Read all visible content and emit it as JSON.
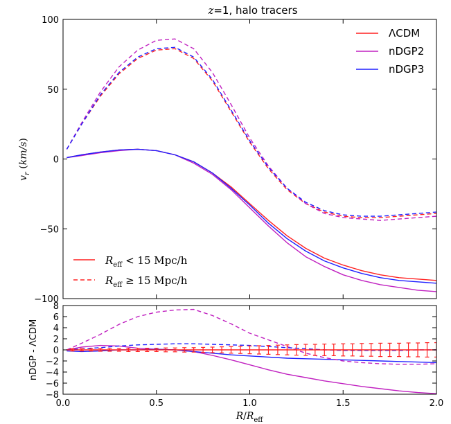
{
  "chart_data": [
    {
      "type": "line",
      "title": "z=1, halo tracers",
      "title_math": "z",
      "title_rest": "=1, halo tracers",
      "xlabel": "R/R_eff",
      "ylabel": "v_r (km/s)",
      "xlim": [
        0.0,
        2.0
      ],
      "ylim": [
        -100,
        100
      ],
      "xticks": [
        0.0,
        0.5,
        1.0,
        1.5,
        2.0
      ],
      "xtick_labels": [
        "0.0",
        "0.5",
        "1.0",
        "1.5",
        "2.0"
      ],
      "yticks": [
        -100,
        -50,
        0,
        50,
        100
      ],
      "ytick_labels": [
        "−100",
        "−50",
        "0",
        "50",
        "100"
      ],
      "grid": false,
      "legend": {
        "placement": "top-right",
        "entries": [
          {
            "label": "ΛCDM",
            "color": "#ff2020"
          },
          {
            "label": "nDGP2",
            "color": "#c020c0"
          },
          {
            "label": "nDGP3",
            "color": "#1f1fff"
          }
        ]
      },
      "style_legend": {
        "placement": "lower-left",
        "entries": [
          {
            "label": "R_eff < 15 Mpc/h",
            "linestyle": "solid",
            "color": "#ff2020"
          },
          {
            "label": "R_eff ≥ 15 Mpc/h",
            "linestyle": "dashed",
            "color": "#ff2020"
          }
        ]
      },
      "x": [
        0.02,
        0.1,
        0.2,
        0.3,
        0.4,
        0.5,
        0.6,
        0.7,
        0.8,
        0.9,
        1.0,
        1.1,
        1.2,
        1.3,
        1.4,
        1.5,
        1.6,
        1.7,
        1.8,
        1.9,
        2.0
      ],
      "series": [
        {
          "name": "ΛCDM",
          "group": "R_eff < 15 Mpc/h",
          "linestyle": "solid",
          "color": "#ff2020",
          "values": [
            1,
            3,
            5,
            6.5,
            7,
            6,
            3,
            -2,
            -10,
            -20,
            -32,
            -44,
            -55,
            -64,
            -71,
            -76,
            -80,
            -83,
            -85,
            -86,
            -87
          ]
        },
        {
          "name": "nDGP2",
          "group": "R_eff < 15 Mpc/h",
          "linestyle": "solid",
          "color": "#c020c0",
          "values": [
            1,
            2.5,
            4.5,
            6,
            7,
            6,
            3,
            -3,
            -11,
            -22,
            -35,
            -48,
            -60,
            -70,
            -77,
            -83,
            -87,
            -90,
            -92,
            -94,
            -95
          ]
        },
        {
          "name": "nDGP3",
          "group": "R_eff < 15 Mpc/h",
          "linestyle": "solid",
          "color": "#1f1fff",
          "values": [
            1,
            3,
            5,
            6.5,
            7,
            6,
            3,
            -2,
            -10,
            -21,
            -33,
            -46,
            -57,
            -66,
            -73,
            -78,
            -82,
            -85,
            -87,
            -88,
            -89
          ]
        },
        {
          "name": "ΛCDM",
          "group": "R_eff ≥ 15 Mpc/h",
          "linestyle": "dashed",
          "color": "#ff2020",
          "values": [
            7,
            25,
            45,
            61,
            72,
            78,
            79,
            72,
            56,
            34,
            12,
            -7,
            -22,
            -32,
            -38,
            -41,
            -42,
            -42,
            -41,
            -40,
            -39
          ]
        },
        {
          "name": "nDGP2",
          "group": "R_eff ≥ 15 Mpc/h",
          "linestyle": "dashed",
          "color": "#c020c0",
          "values": [
            7,
            26,
            48,
            66,
            78,
            85,
            86,
            79,
            62,
            39,
            15,
            -5,
            -21,
            -32,
            -39,
            -42,
            -43,
            -44,
            -43,
            -42,
            -41
          ]
        },
        {
          "name": "nDGP3",
          "group": "R_eff ≥ 15 Mpc/h",
          "linestyle": "dashed",
          "color": "#1f1fff",
          "values": [
            7,
            25,
            46,
            62,
            73,
            79,
            80,
            73,
            57,
            35,
            13,
            -6,
            -21,
            -31,
            -37,
            -40,
            -41,
            -41,
            -40,
            -39,
            -38
          ]
        }
      ]
    },
    {
      "type": "line",
      "xlabel": "R/R_eff",
      "ylabel": "nDGP - ΛCDM",
      "xlim": [
        0.0,
        2.0
      ],
      "ylim": [
        -8,
        8
      ],
      "xticks": [
        0.0,
        0.5,
        1.0,
        1.5,
        2.0
      ],
      "xtick_labels": [
        "0.0",
        "0.5",
        "1.0",
        "1.5",
        "2.0"
      ],
      "yticks": [
        -8,
        -6,
        -4,
        -2,
        0,
        2,
        4,
        6,
        8
      ],
      "ytick_labels": [
        "−8",
        "−6",
        "−4",
        "−2",
        "0",
        "2",
        "4",
        "6",
        "8"
      ],
      "grid": false,
      "x": [
        0.02,
        0.1,
        0.2,
        0.3,
        0.4,
        0.5,
        0.6,
        0.7,
        0.8,
        0.9,
        1.0,
        1.1,
        1.2,
        1.3,
        1.4,
        1.5,
        1.6,
        1.7,
        1.8,
        1.9,
        2.0
      ],
      "series": [
        {
          "name": "nDGP2",
          "linestyle": "solid",
          "color": "#c020c0",
          "values": [
            0,
            0.5,
            0.8,
            0.7,
            0.3,
            0.1,
            0.0,
            -0.3,
            -1.0,
            -1.8,
            -2.7,
            -3.6,
            -4.4,
            -5.0,
            -5.6,
            -6.1,
            -6.6,
            -7.0,
            -7.4,
            -7.7,
            -7.9
          ]
        },
        {
          "name": "nDGP3",
          "linestyle": "solid",
          "color": "#1f1fff",
          "values": [
            -0.2,
            -0.3,
            -0.2,
            0.0,
            0.0,
            0.1,
            0.0,
            -0.3,
            -0.6,
            -0.9,
            -1.1,
            -1.3,
            -1.5,
            -1.6,
            -1.7,
            -1.8,
            -1.9,
            -2.0,
            -2.1,
            -2.2,
            -2.3
          ]
        },
        {
          "name": "nDGP2",
          "linestyle": "dashed",
          "color": "#c020c0",
          "values": [
            0,
            1.2,
            2.8,
            4.6,
            6.0,
            6.8,
            7.2,
            7.3,
            6.2,
            4.7,
            3.0,
            1.8,
            0.6,
            -0.6,
            -1.4,
            -2.0,
            -2.3,
            -2.5,
            -2.6,
            -2.6,
            -2.5
          ]
        },
        {
          "name": "nDGP3",
          "linestyle": "dashed",
          "color": "#1f1fff",
          "values": [
            0,
            0.2,
            0.4,
            0.7,
            0.9,
            1.0,
            1.1,
            1.1,
            1.0,
            0.9,
            0.8,
            0.6,
            0.4,
            0.2,
            0.0,
            -0.1,
            -0.1,
            -0.1,
            -0.1,
            0.0,
            0.0
          ]
        },
        {
          "name": "ΛCDM",
          "linestyle": "solid",
          "color": "#ff2020",
          "values": [
            0,
            0,
            0,
            0,
            0,
            0,
            0,
            0,
            0,
            0,
            0,
            0,
            0,
            0,
            0,
            0,
            0,
            0,
            0,
            0,
            0
          ]
        }
      ],
      "errorbars": {
        "color": "#ff2020",
        "x": [
          0.05,
          0.1,
          0.15,
          0.2,
          0.25,
          0.3,
          0.35,
          0.4,
          0.45,
          0.5,
          0.55,
          0.6,
          0.65,
          0.7,
          0.75,
          0.8,
          0.85,
          0.9,
          0.95,
          1.0,
          1.05,
          1.1,
          1.15,
          1.2,
          1.25,
          1.3,
          1.35,
          1.4,
          1.45,
          1.5,
          1.55,
          1.6,
          1.65,
          1.7,
          1.75,
          1.8,
          1.85,
          1.9,
          1.95,
          2.0
        ],
        "y": [
          0,
          0,
          0,
          0,
          0,
          0,
          0,
          0,
          0,
          0,
          0,
          0,
          0,
          0,
          0,
          0,
          0,
          0,
          0,
          0,
          0,
          0,
          0,
          0,
          0,
          0,
          0,
          0,
          0,
          0,
          0,
          0,
          0,
          0,
          0,
          0,
          0,
          0,
          0,
          0
        ],
        "err": [
          0.2,
          0.2,
          0.2,
          0.25,
          0.25,
          0.25,
          0.3,
          0.3,
          0.3,
          0.3,
          0.35,
          0.35,
          0.4,
          0.4,
          0.45,
          0.5,
          0.55,
          0.6,
          0.65,
          0.7,
          0.75,
          0.8,
          0.85,
          0.9,
          0.95,
          1.0,
          1.0,
          1.05,
          1.05,
          1.1,
          1.1,
          1.15,
          1.15,
          1.2,
          1.2,
          1.2,
          1.25,
          1.25,
          1.3,
          1.3
        ]
      }
    }
  ]
}
